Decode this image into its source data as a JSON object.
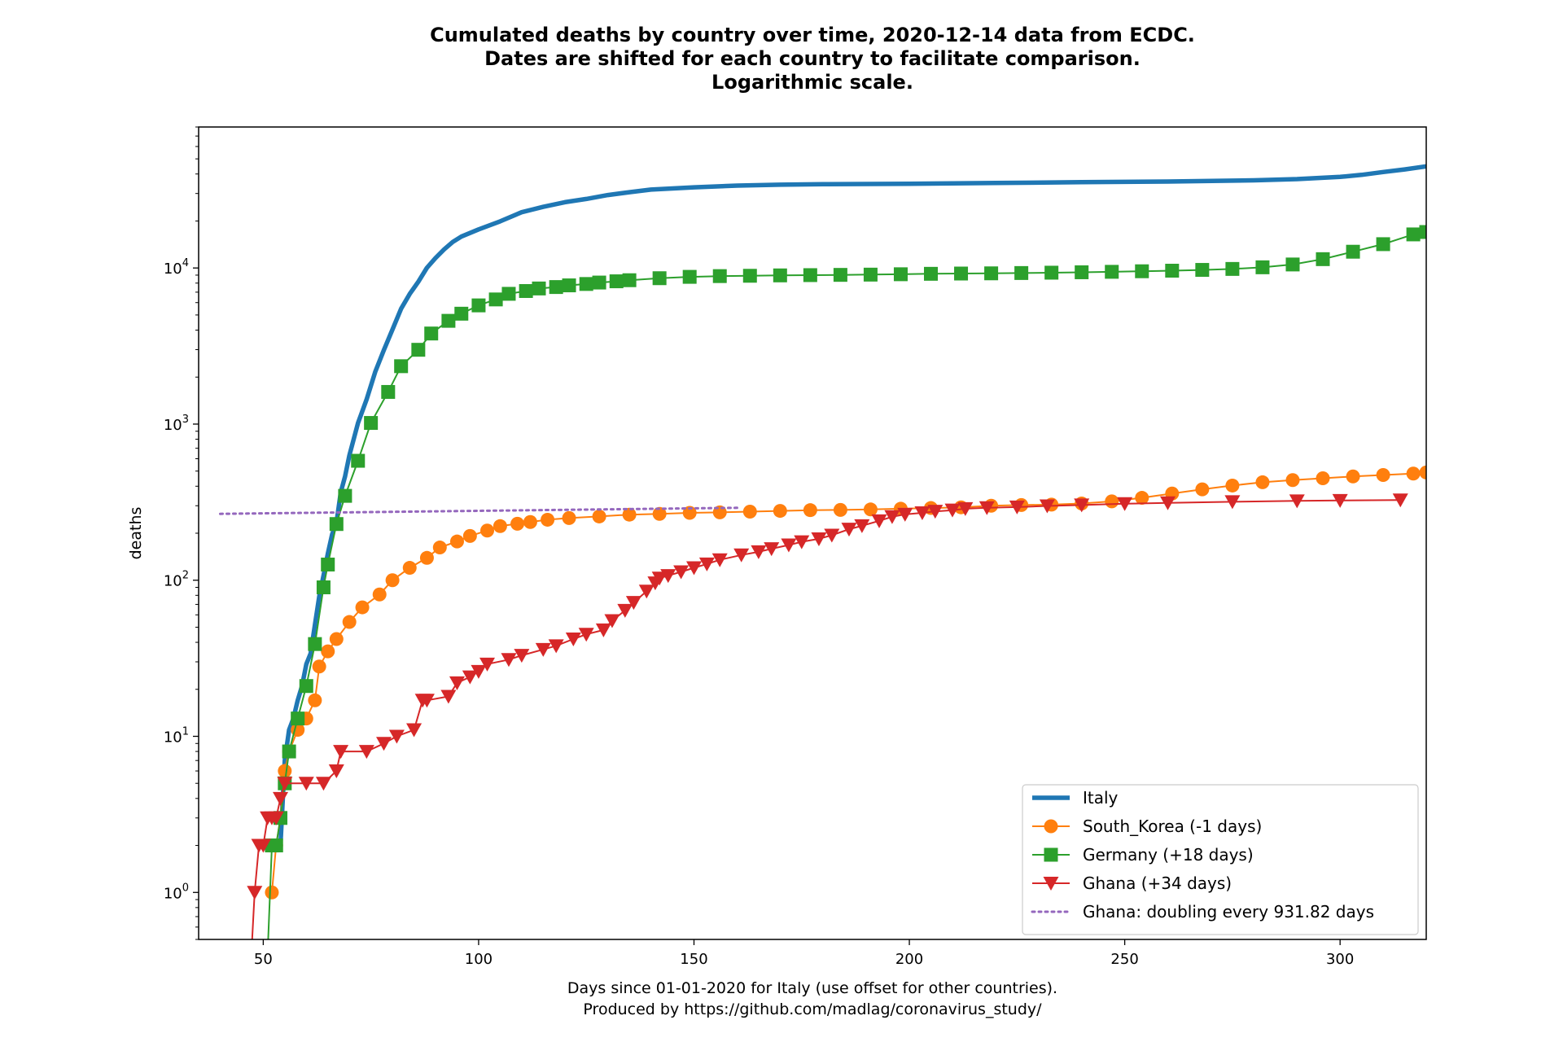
{
  "chart_data": {
    "type": "line",
    "title_lines": [
      "Cumulated deaths by country over time, 2020-12-14 data from ECDC.",
      "Dates are shifted for each country to facilitate comparison.",
      "Logarithmic scale."
    ],
    "xlabel_lines": [
      "Days since 01-01-2020 for Italy (use offset for other countries).",
      "Produced by https://github.com/madlag/coronavirus_study/"
    ],
    "ylabel": "deaths",
    "x_scale": "linear",
    "y_scale": "log",
    "xlim": [
      35,
      320
    ],
    "ylim": [
      0.5,
      80000
    ],
    "x_ticks": [
      50,
      100,
      150,
      200,
      250,
      300
    ],
    "y_ticks": [
      {
        "value": 1,
        "label_base": "10",
        "label_exp": "0"
      },
      {
        "value": 10,
        "label_base": "10",
        "label_exp": "1"
      },
      {
        "value": 100,
        "label_base": "10",
        "label_exp": "2"
      },
      {
        "value": 1000,
        "label_base": "10",
        "label_exp": "3"
      },
      {
        "value": 10000,
        "label_base": "10",
        "label_exp": "4"
      }
    ],
    "grid": false,
    "legend_position": "lower-right",
    "series": [
      {
        "name": "Italy",
        "color": "#1f77b4",
        "marker": "none",
        "line_style": "solid-thick",
        "x": [
          53,
          54,
          55,
          56,
          57,
          58,
          59,
          60,
          61,
          62,
          63,
          64,
          65,
          66,
          67,
          68,
          69,
          70,
          72,
          74,
          76,
          78,
          80,
          82,
          84,
          86,
          88,
          90,
          92,
          94,
          96,
          100,
          105,
          110,
          115,
          120,
          125,
          130,
          135,
          140,
          150,
          160,
          170,
          180,
          200,
          220,
          240,
          260,
          280,
          290,
          300,
          305,
          310,
          315,
          320
        ],
        "y": [
          2,
          2,
          7,
          11,
          13,
          17,
          21,
          29,
          34,
          52,
          79,
          107,
          148,
          197,
          233,
          366,
          463,
          631,
          1016,
          1441,
          2158,
          2978,
          4032,
          5476,
          6820,
          8165,
          10023,
          11591,
          13155,
          14681,
          15887,
          17669,
          19899,
          22745,
          24648,
          26384,
          27682,
          29315,
          30560,
          31763,
          32877,
          33689,
          34142,
          34405,
          34645,
          35042,
          35427,
          35800,
          36450,
          37100,
          38300,
          39500,
          41200,
          42800,
          44800
        ]
      },
      {
        "name": "South_Korea (-1 days)",
        "color": "#ff7f0e",
        "marker": "circle",
        "line_style": "solid",
        "x": [
          52,
          53,
          54,
          55,
          56,
          58,
          60,
          62,
          63,
          65,
          67,
          70,
          73,
          77,
          80,
          84,
          88,
          91,
          95,
          98,
          102,
          105,
          109,
          112,
          116,
          121,
          128,
          135,
          142,
          149,
          156,
          163,
          170,
          177,
          184,
          191,
          198,
          205,
          212,
          219,
          226,
          233,
          240,
          247,
          254,
          261,
          268,
          275,
          282,
          289,
          296,
          303,
          310,
          317,
          320
        ],
        "y": [
          1,
          2,
          3,
          6,
          8,
          11,
          13,
          17,
          28,
          35,
          42,
          54,
          67,
          81,
          100,
          120,
          139,
          162,
          177,
          192,
          208,
          222,
          230,
          236,
          244,
          250,
          256,
          263,
          266,
          270,
          272,
          275,
          278,
          281,
          282,
          284,
          287,
          290,
          293,
          300,
          303,
          305,
          310,
          320,
          337,
          359,
          382,
          404,
          424,
          438,
          450,
          462,
          472,
          482,
          490
        ]
      },
      {
        "name": "Germany (+18 days)",
        "color": "#2ca02c",
        "marker": "square",
        "line_style": "solid",
        "x": [
          51,
          52,
          53,
          54,
          55,
          56,
          58,
          60,
          62,
          64,
          65,
          67,
          69,
          72,
          75,
          79,
          82,
          86,
          89,
          93,
          96,
          100,
          104,
          107,
          111,
          114,
          118,
          121,
          125,
          128,
          132,
          135,
          142,
          149,
          156,
          163,
          170,
          177,
          184,
          191,
          198,
          205,
          212,
          219,
          226,
          233,
          240,
          247,
          254,
          261,
          268,
          275,
          282,
          289,
          296,
          303,
          310,
          317,
          320
        ],
        "y": [
          0.4,
          2,
          2,
          3,
          5,
          8,
          13,
          21,
          39,
          90,
          126,
          229,
          347,
          582,
          1017,
          1607,
          2349,
          2992,
          3804,
          4586,
          5095,
          5760,
          6288,
          6831,
          7119,
          7392,
          7549,
          7738,
          7897,
          8067,
          8216,
          8349,
          8600,
          8773,
          8872,
          8914,
          8965,
          9000,
          9032,
          9067,
          9118,
          9176,
          9213,
          9240,
          9283,
          9330,
          9386,
          9450,
          9527,
          9609,
          9720,
          9860,
          10100,
          10530,
          11390,
          12710,
          14210,
          16410,
          17000
        ]
      },
      {
        "name": "Ghana (+34 days)",
        "color": "#d62728",
        "marker": "triangle-down",
        "line_style": "solid",
        "x": [
          47,
          48,
          49,
          50,
          51,
          52,
          53,
          54,
          55,
          60,
          64,
          67,
          68,
          74,
          78,
          81,
          85,
          87,
          88,
          93,
          95,
          98,
          100,
          102,
          107,
          110,
          115,
          118,
          122,
          125,
          129,
          131,
          134,
          136,
          139,
          141,
          142,
          144,
          147,
          150,
          153,
          156,
          161,
          165,
          168,
          172,
          175,
          179,
          182,
          186,
          189,
          193,
          196,
          199,
          203,
          206,
          210,
          213,
          218,
          225,
          232,
          240,
          250,
          260,
          275,
          290,
          300,
          314
        ],
        "y": [
          0.3,
          1,
          2,
          2,
          3,
          3,
          3,
          4,
          5,
          5,
          5,
          6,
          8,
          8,
          9,
          10,
          11,
          17,
          17,
          18,
          22,
          24,
          26,
          29,
          31,
          33,
          36,
          38,
          42,
          45,
          48,
          55,
          64,
          72,
          85,
          96,
          103,
          107,
          113,
          120,
          127,
          135,
          145,
          152,
          159,
          168,
          176,
          184,
          194,
          212,
          223,
          240,
          255,
          264,
          270,
          276,
          281,
          287,
          291,
          294,
          299,
          303,
          309,
          313,
          318,
          322,
          324,
          326
        ]
      },
      {
        "name": "Ghana: doubling every 931.82 days",
        "color": "#9467bd",
        "marker": "none",
        "line_style": "dotted",
        "x": [
          40,
          160
        ],
        "y": [
          266,
          291
        ]
      }
    ]
  }
}
